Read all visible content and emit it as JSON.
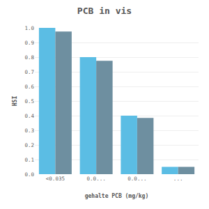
{
  "chart_data": {
    "type": "bar",
    "title": "PCB in vis",
    "xlabel": "gehalte PCB (mg/kg)",
    "ylabel": "HSI",
    "categories": [
      "<0.035",
      "0.0...",
      "0.0...",
      "..."
    ],
    "series": [
      {
        "color": "#5bbde4",
        "values": [
          1.0,
          0.8,
          0.4,
          0.05
        ]
      },
      {
        "color": "#6e8fa0",
        "values": [
          0.975,
          0.775,
          0.385,
          0.05
        ]
      }
    ],
    "ylim": [
      0.0,
      1.0
    ],
    "yticks": [
      {
        "value": 0.0,
        "label": "0.0"
      },
      0.1,
      0.2,
      0.3,
      0.4,
      0.5,
      0.6,
      0.7,
      0.8,
      0.9,
      {
        "value": 1.0,
        "label": "1.0"
      }
    ],
    "grid": true
  }
}
